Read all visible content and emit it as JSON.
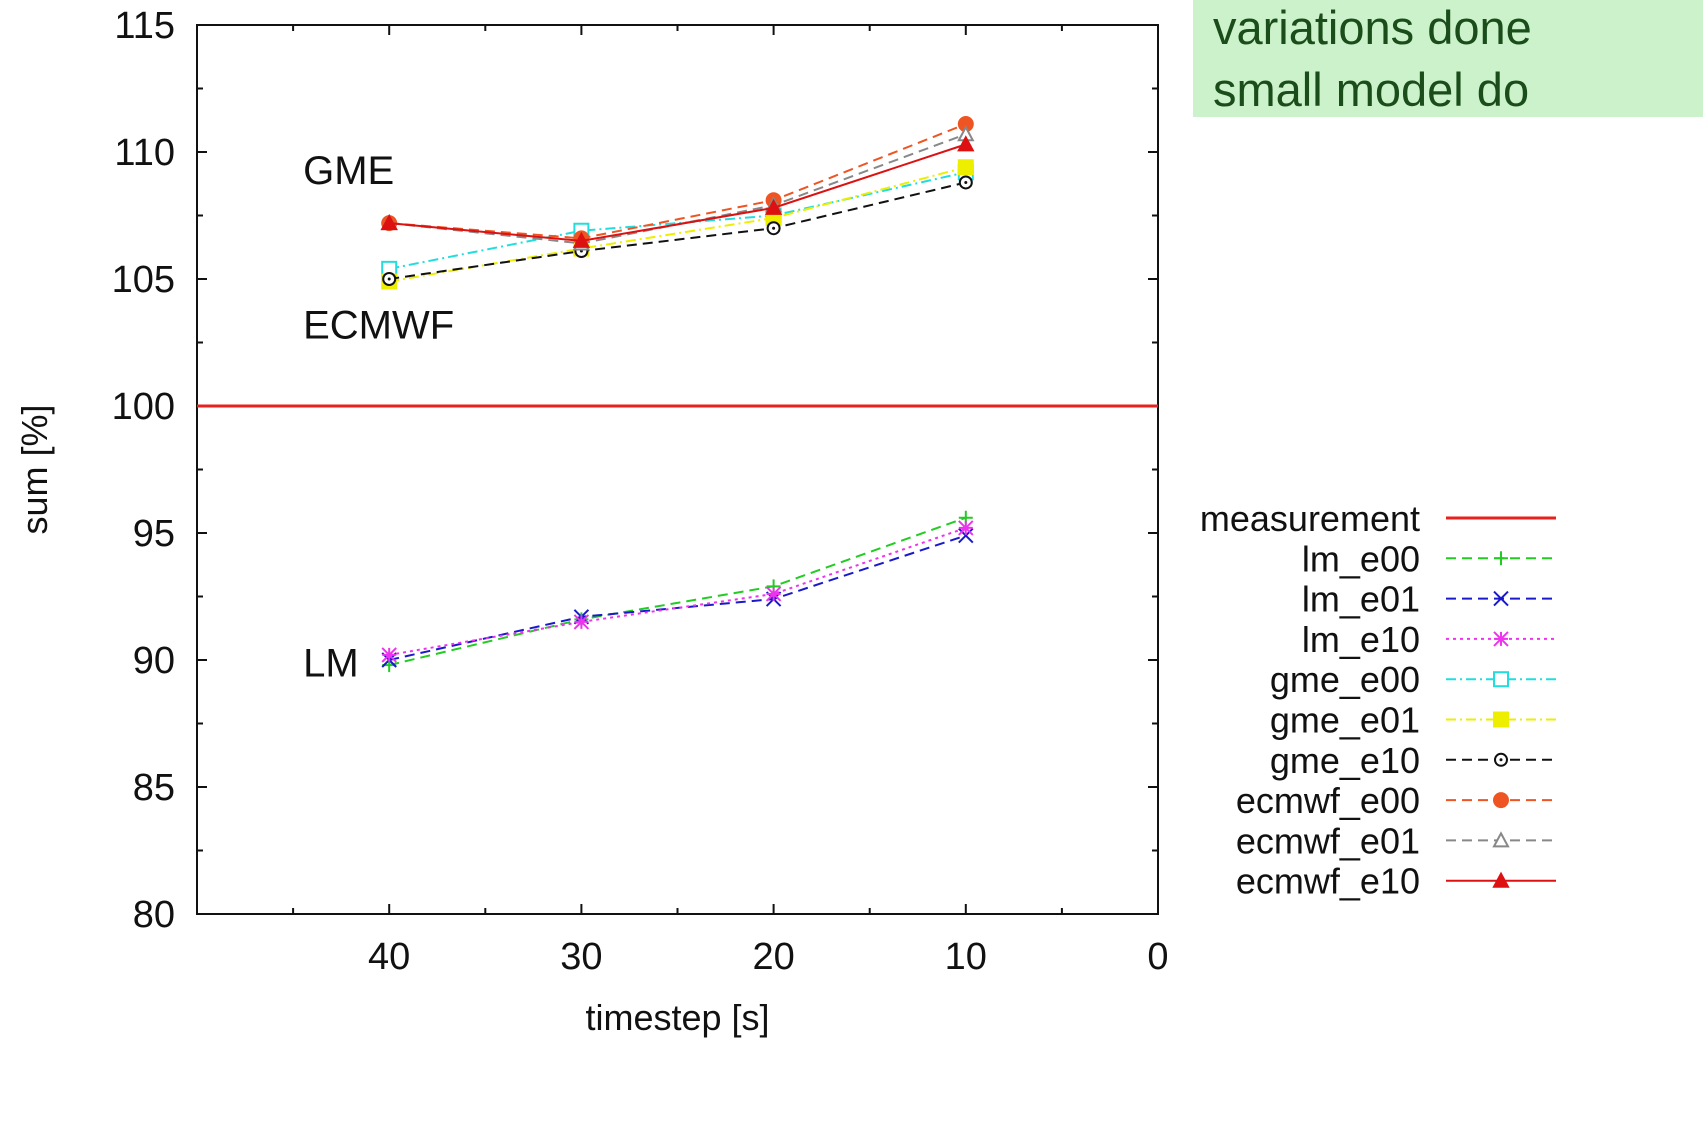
{
  "note": {
    "lines": [
      "variations done",
      "small model do"
    ]
  },
  "chart_data": {
    "type": "line",
    "xlabel": "timestep [s]",
    "ylabel": "sum [%]",
    "xlim": [
      50,
      0
    ],
    "ylim": [
      80,
      115
    ],
    "x_ticks": [
      40,
      30,
      20,
      10,
      0
    ],
    "y_ticks": [
      80,
      85,
      90,
      95,
      100,
      105,
      110,
      115
    ],
    "grid": false,
    "legend_position": "right",
    "annotations": [
      {
        "text": "GME",
        "x": 45,
        "y": 109.3
      },
      {
        "text": "ECMWF",
        "x": 45,
        "y": 103.2
      },
      {
        "text": "LM",
        "x": 45,
        "y": 89.9
      }
    ],
    "series": [
      {
        "name": "measurement",
        "color": "#e8201e",
        "dash": "solid",
        "marker": "none",
        "x": [
          50,
          0
        ],
        "y": [
          100,
          100
        ]
      },
      {
        "name": "lm_e00",
        "color": "#22cc22",
        "dash": "dashed",
        "marker": "plus",
        "x": [
          40,
          30,
          20,
          10
        ],
        "y": [
          89.8,
          91.6,
          92.9,
          95.6
        ]
      },
      {
        "name": "lm_e01",
        "color": "#1a1acc",
        "dash": "dashed",
        "marker": "cross",
        "x": [
          40,
          30,
          20,
          10
        ],
        "y": [
          90.0,
          91.7,
          92.4,
          94.9
        ]
      },
      {
        "name": "lm_e10",
        "color": "#ee33ee",
        "dash": "dotted",
        "marker": "star",
        "x": [
          40,
          30,
          20,
          10
        ],
        "y": [
          90.2,
          91.5,
          92.6,
          95.2
        ]
      },
      {
        "name": "gme_e00",
        "color": "#22dddd",
        "dash": "dashdot",
        "marker": "square-open",
        "x": [
          40,
          30,
          20,
          10
        ],
        "y": [
          105.4,
          106.9,
          107.5,
          109.2
        ]
      },
      {
        "name": "gme_e01",
        "color": "#eeee00",
        "dash": "dashdot",
        "marker": "square-filled",
        "x": [
          40,
          30,
          20,
          10
        ],
        "y": [
          104.9,
          106.2,
          107.4,
          109.4
        ]
      },
      {
        "name": "gme_e10",
        "color": "#111111",
        "dash": "dashed",
        "marker": "circle-open",
        "x": [
          40,
          30,
          20,
          10
        ],
        "y": [
          105.0,
          106.1,
          107.0,
          108.8
        ]
      },
      {
        "name": "ecmwf_e00",
        "color": "#ee5522",
        "dash": "dashed",
        "marker": "circle-filled",
        "x": [
          40,
          30,
          20,
          10
        ],
        "y": [
          107.2,
          106.6,
          108.1,
          111.1
        ]
      },
      {
        "name": "ecmwf_e01",
        "color": "#888888",
        "dash": "dashed",
        "marker": "triangle-open",
        "x": [
          40,
          30,
          20,
          10
        ],
        "y": [
          107.2,
          106.4,
          107.9,
          110.7
        ]
      },
      {
        "name": "ecmwf_e10",
        "color": "#dd1111",
        "dash": "solid",
        "marker": "triangle-filled",
        "x": [
          40,
          30,
          20,
          10
        ],
        "y": [
          107.2,
          106.5,
          107.8,
          110.3
        ]
      }
    ]
  }
}
